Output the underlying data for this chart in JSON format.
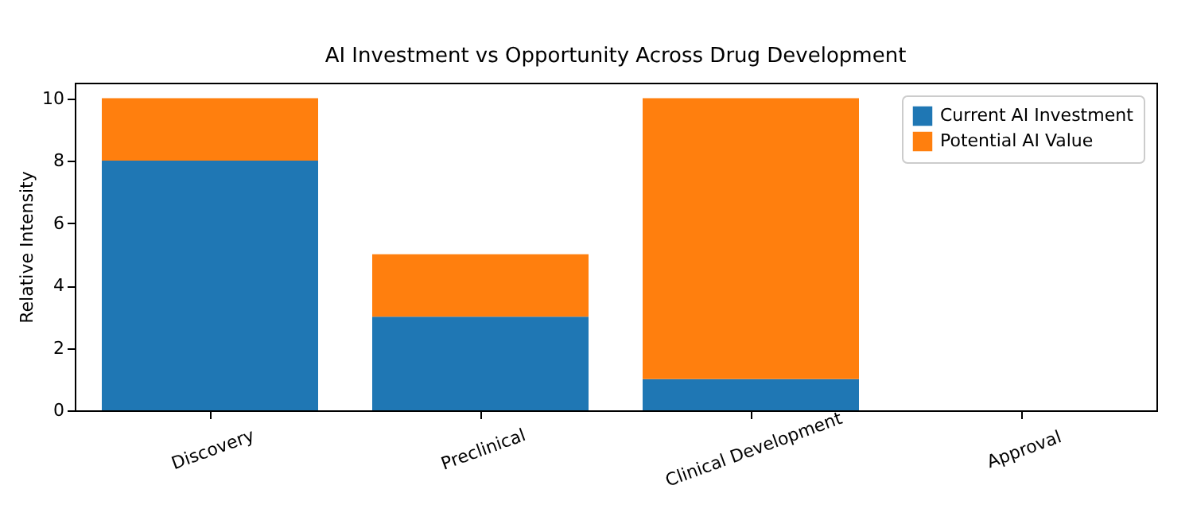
{
  "chart_data": {
    "type": "bar",
    "title": "AI Investment vs Opportunity Across Drug Development",
    "ylabel": "Relative Intensity",
    "categories": [
      "Discovery",
      "Preclinical",
      "Clinical Development",
      "Approval"
    ],
    "stacked": true,
    "legend": "top right",
    "ylim": [
      0,
      10.5
    ],
    "yticks": [
      0,
      2,
      4,
      6,
      8,
      10
    ],
    "series": [
      {
        "name": "Current AI Investment",
        "color": "#1f77b4",
        "values": [
          8,
          3,
          1,
          0
        ]
      },
      {
        "name": "Potential AI Value",
        "color": "#ff7f0e",
        "values": [
          2,
          2,
          9,
          0
        ]
      }
    ]
  }
}
